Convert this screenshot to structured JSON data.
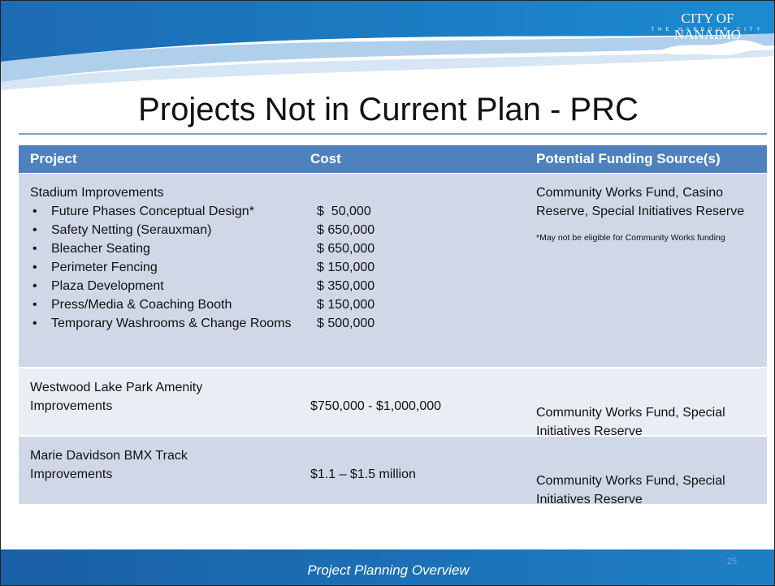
{
  "logo": {
    "name": "CITY OF NANAIMO",
    "tagline": "THE HARBOUR CITY"
  },
  "title": "Projects Not in Current Plan - PRC",
  "table": {
    "headers": [
      "Project",
      "Cost",
      "Potential Funding Source(s)"
    ],
    "rows": [
      {
        "project": "Stadium Improvements",
        "items": [
          {
            "name": "Future Phases Conceptual Design*",
            "cost": "$  50,000"
          },
          {
            "name": "Safety Netting (Serauxman)",
            "cost": "$ 650,000"
          },
          {
            "name": "Bleacher Seating",
            "cost": "$ 650,000"
          },
          {
            "name": "Perimeter Fencing",
            "cost": "$ 150,000"
          },
          {
            "name": "Plaza Development",
            "cost": "$ 350,000"
          },
          {
            "name": "Press/Media & Coaching Booth",
            "cost": "$ 150,000"
          },
          {
            "name": "Temporary Washrooms & Change Rooms",
            "cost": "$ 500,000"
          }
        ],
        "funding": "Community Works Fund, Casino Reserve, Special Initiatives Reserve",
        "note": "*May not be eligible for Community Works funding"
      },
      {
        "project": "Westwood Lake Park Amenity Improvements",
        "cost": "$750,000 - $1,000,000",
        "funding": "Community Works Fund, Special Initiatives Reserve"
      },
      {
        "project": "Marie Davidson BMX Track Improvements",
        "cost": "$1.1 – $1.5 million",
        "funding": "Community Works Fund, Special Initiatives Reserve"
      }
    ]
  },
  "footer": {
    "text": "Project Planning Overview",
    "page": "25"
  }
}
